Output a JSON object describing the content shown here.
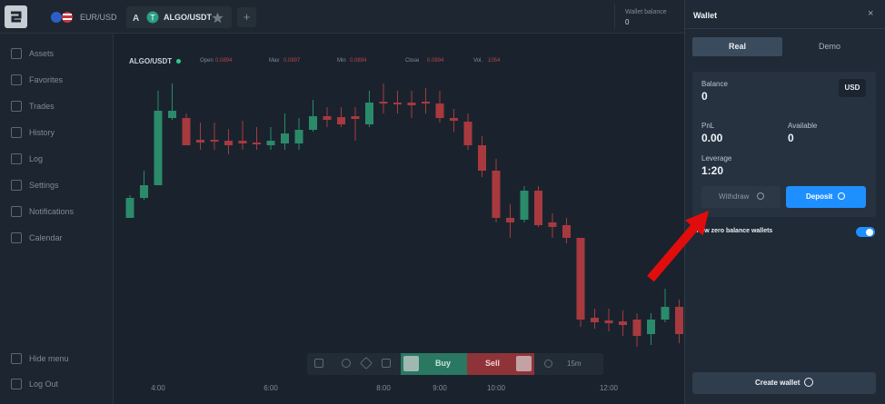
{
  "topbar": {
    "pair": "EUR/USD",
    "tab": "ALGO/USDT",
    "wallet_balance_label": "Wallet balance",
    "wallet_balance": "0"
  },
  "sidebar": {
    "items": [
      "Assets",
      "Favorites",
      "Trades",
      "History",
      "Log",
      "Settings",
      "Notifications",
      "Calendar"
    ],
    "hide": "Hide menu",
    "logout": "Log Out"
  },
  "chart_header": {
    "symbol": "ALGO/USDT",
    "stats": [
      {
        "label": "Open",
        "value": 0.0894
      },
      {
        "label": "Max",
        "value": 0.0897
      },
      {
        "label": "Min",
        "value": 0.0894
      },
      {
        "label": "Close",
        "value": 0.0894
      },
      {
        "label": "Vol.",
        "value": 1054
      }
    ]
  },
  "chart_data": {
    "type": "candlestick",
    "up_color": "#2a8a6a",
    "down_color": "#a8393f",
    "ylim": [
      0.0873,
      0.0905
    ],
    "categories": [
      null,
      null,
      "4:00",
      null,
      null,
      null,
      null,
      null,
      null,
      null,
      "6:00",
      null,
      null,
      null,
      null,
      null,
      null,
      null,
      "8:00",
      null,
      null,
      null,
      "9:00",
      null,
      null,
      null,
      "10:00",
      null,
      null,
      null,
      null,
      null,
      null,
      null,
      "12:00",
      null,
      null,
      null,
      null,
      null
    ],
    "candles": [
      {
        "open": 0.0889,
        "high": 0.08915,
        "low": 0.0889,
        "close": 0.08912
      },
      {
        "open": 0.08912,
        "high": 0.08942,
        "low": 0.0891,
        "close": 0.08926
      },
      {
        "open": 0.08926,
        "high": 0.0903,
        "low": 0.08926,
        "close": 0.09008
      },
      {
        "open": 0.09,
        "high": 0.09038,
        "low": 0.08998,
        "close": 0.09008
      },
      {
        "open": 0.09,
        "high": 0.09005,
        "low": 0.0897,
        "close": 0.0897
      },
      {
        "open": 0.08976,
        "high": 0.08995,
        "low": 0.08965,
        "close": 0.08973
      },
      {
        "open": 0.08976,
        "high": 0.08995,
        "low": 0.08965,
        "close": 0.08974
      },
      {
        "open": 0.08975,
        "high": 0.08988,
        "low": 0.0896,
        "close": 0.0897
      },
      {
        "open": 0.08975,
        "high": 0.08997,
        "low": 0.08965,
        "close": 0.08972
      },
      {
        "open": 0.08973,
        "high": 0.0899,
        "low": 0.08965,
        "close": 0.08971
      },
      {
        "open": 0.0897,
        "high": 0.0899,
        "low": 0.08965,
        "close": 0.08975
      },
      {
        "open": 0.08972,
        "high": 0.09005,
        "low": 0.08965,
        "close": 0.08983
      },
      {
        "open": 0.08972,
        "high": 0.09,
        "low": 0.08965,
        "close": 0.08987
      },
      {
        "open": 0.08987,
        "high": 0.0902,
        "low": 0.08985,
        "close": 0.09002
      },
      {
        "open": 0.09002,
        "high": 0.09012,
        "low": 0.0899,
        "close": 0.08998
      },
      {
        "open": 0.09001,
        "high": 0.09012,
        "low": 0.0899,
        "close": 0.08993
      },
      {
        "open": 0.09002,
        "high": 0.09012,
        "low": 0.08975,
        "close": 0.08999
      },
      {
        "open": 0.08993,
        "high": 0.0903,
        "low": 0.0899,
        "close": 0.09017
      },
      {
        "open": 0.09018,
        "high": 0.09038,
        "low": 0.09005,
        "close": 0.09016
      },
      {
        "open": 0.09017,
        "high": 0.0903,
        "low": 0.09005,
        "close": 0.09015
      },
      {
        "open": 0.09017,
        "high": 0.0903,
        "low": 0.09,
        "close": 0.09014
      },
      {
        "open": 0.09018,
        "high": 0.09033,
        "low": 0.09005,
        "close": 0.09016
      },
      {
        "open": 0.09016,
        "high": 0.0903,
        "low": 0.08995,
        "close": 0.09
      },
      {
        "open": 0.09,
        "high": 0.0901,
        "low": 0.08985,
        "close": 0.08997
      },
      {
        "open": 0.08996,
        "high": 0.09005,
        "low": 0.08965,
        "close": 0.0897
      },
      {
        "open": 0.0897,
        "high": 0.0898,
        "low": 0.08935,
        "close": 0.08942
      },
      {
        "open": 0.08942,
        "high": 0.08955,
        "low": 0.08885,
        "close": 0.0889
      },
      {
        "open": 0.0889,
        "high": 0.08905,
        "low": 0.08868,
        "close": 0.08885
      },
      {
        "open": 0.08888,
        "high": 0.08925,
        "low": 0.08885,
        "close": 0.0892
      },
      {
        "open": 0.0892,
        "high": 0.08925,
        "low": 0.0888,
        "close": 0.08882
      },
      {
        "open": 0.08885,
        "high": 0.08895,
        "low": 0.08868,
        "close": 0.0888
      },
      {
        "open": 0.08882,
        "high": 0.0889,
        "low": 0.08862,
        "close": 0.08868
      },
      {
        "open": 0.08868,
        "high": 0.08868,
        "low": 0.0877,
        "close": 0.08778
      },
      {
        "open": 0.0878,
        "high": 0.0879,
        "low": 0.08768,
        "close": 0.08775
      },
      {
        "open": 0.08777,
        "high": 0.0879,
        "low": 0.08765,
        "close": 0.08774
      },
      {
        "open": 0.08776,
        "high": 0.08788,
        "low": 0.0876,
        "close": 0.08772
      },
      {
        "open": 0.08778,
        "high": 0.08785,
        "low": 0.08748,
        "close": 0.0876
      },
      {
        "open": 0.08762,
        "high": 0.08785,
        "low": 0.0875,
        "close": 0.08778
      },
      {
        "open": 0.08778,
        "high": 0.08812,
        "low": 0.08775,
        "close": 0.08792
      },
      {
        "open": 0.08792,
        "high": 0.088,
        "low": 0.08752,
        "close": 0.08762
      }
    ]
  },
  "toolbar": {
    "buy": "Buy",
    "sell": "Sell",
    "interval": "15m"
  },
  "wallet": {
    "title": "Wallet",
    "close": "×",
    "tabs": [
      "Real",
      "Demo"
    ],
    "balance_label": "Balance",
    "balance": "0",
    "currency": "USD",
    "pnl_label": "PnL",
    "pnl": "0.00",
    "available_label": "Available",
    "available": "0",
    "leverage_label": "Leverage",
    "leverage": "1:20",
    "withdraw": "Withdraw",
    "deposit": "Deposit",
    "zero_toggle": "Show zero balance wallets",
    "create": "Create wallet"
  }
}
